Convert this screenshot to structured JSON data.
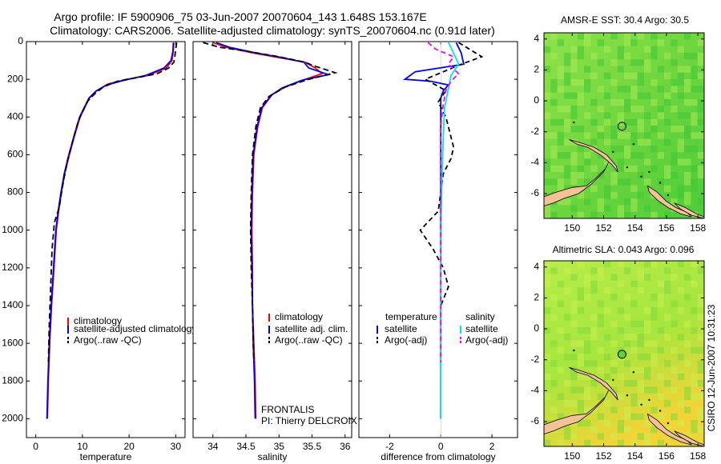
{
  "header": {
    "line1": "Argo profile: IF 5900906_75 03-Jun-2007 20070604_143 1.648S 153.167E",
    "line2": "Climatology: CARS2006. Satellite-adjusted climatology: synTS_20070604.nc (0.91d later)"
  },
  "side_stamp": "CSIRO 12-Jun-2007 10:31:23",
  "colors": {
    "climatology": "#ff0000",
    "satellite": "#0000ff",
    "argo": "#000000",
    "sal_satellite": "#00e5ee",
    "sal_argo": "#ff00ff",
    "land": "#f4c295",
    "map_green": "#5fd33a"
  },
  "chart_data": [
    {
      "type": "line",
      "xlabel": "temperature",
      "ylim": [
        0,
        2100
      ],
      "xlim": [
        -2,
        32
      ],
      "yticks": [
        0,
        200,
        400,
        600,
        800,
        1000,
        1200,
        1400,
        1600,
        1800,
        2000
      ],
      "xticks": [
        0,
        10,
        20,
        30
      ],
      "ytick_labels": [
        "0",
        "200",
        "400",
        "600",
        "800",
        "1000",
        "1200",
        "1400",
        "1600",
        "1800",
        "2000"
      ],
      "xtick_labels": [
        "0",
        "10",
        "20",
        "30"
      ],
      "legend": [
        "climatology",
        "satellite-adjusted climatology",
        "Argo(..raw -QC)"
      ],
      "series": [
        {
          "name": "climatology",
          "color": "#ff0000",
          "dash": "",
          "points": [
            [
              29.6,
              5
            ],
            [
              29.5,
              50
            ],
            [
              29.2,
              100
            ],
            [
              28.0,
              140
            ],
            [
              24.0,
              180
            ],
            [
              19.5,
              200
            ],
            [
              15.5,
              225
            ],
            [
              13.0,
              260
            ],
            [
              11.5,
              300
            ],
            [
              10.5,
              350
            ],
            [
              9.5,
              400
            ],
            [
              8.3,
              500
            ],
            [
              7.2,
              600
            ],
            [
              6.2,
              700
            ],
            [
              5.5,
              800
            ],
            [
              4.9,
              900
            ],
            [
              4.4,
              1000
            ],
            [
              3.9,
              1200
            ],
            [
              3.4,
              1400
            ],
            [
              3.0,
              1600
            ],
            [
              2.7,
              1800
            ],
            [
              2.5,
              2000
            ]
          ]
        },
        {
          "name": "satellite-adjusted climatology",
          "color": "#0000ff",
          "dash": "",
          "points": [
            [
              29.5,
              5
            ],
            [
              29.4,
              50
            ],
            [
              29.0,
              100
            ],
            [
              27.5,
              140
            ],
            [
              23.5,
              180
            ],
            [
              19.0,
              205
            ],
            [
              15.2,
              230
            ],
            [
              12.8,
              265
            ],
            [
              11.4,
              300
            ],
            [
              10.4,
              350
            ],
            [
              9.4,
              400
            ],
            [
              8.2,
              500
            ],
            [
              7.1,
              600
            ],
            [
              6.1,
              700
            ],
            [
              5.4,
              800
            ],
            [
              4.8,
              900
            ],
            [
              4.3,
              1000
            ],
            [
              3.8,
              1200
            ],
            [
              3.3,
              1400
            ],
            [
              2.9,
              1600
            ],
            [
              2.6,
              1800
            ],
            [
              2.4,
              2000
            ]
          ]
        },
        {
          "name": "Argo(..raw -QC)",
          "color": "#000000",
          "dash": "7,4",
          "points": [
            [
              30.2,
              5
            ],
            [
              30.0,
              40
            ],
            [
              29.8,
              80
            ],
            [
              29.6,
              110
            ],
            [
              28.5,
              140
            ],
            [
              26.0,
              170
            ],
            [
              22.0,
              190
            ],
            [
              17.5,
              210
            ],
            [
              14.5,
              240
            ],
            [
              12.5,
              280
            ],
            [
              11.0,
              320
            ],
            [
              10.0,
              370
            ],
            [
              9.0,
              430
            ],
            [
              8.0,
              520
            ],
            [
              6.8,
              630
            ],
            [
              5.8,
              760
            ],
            [
              5.0,
              880
            ],
            [
              4.0,
              960
            ],
            [
              3.5,
              1100
            ],
            [
              3.2,
              1300
            ],
            [
              2.9,
              1500
            ],
            [
              2.7,
              1700
            ]
          ]
        }
      ]
    },
    {
      "type": "line",
      "xlabel": "salinity",
      "ylim": [
        0,
        2100
      ],
      "xlim": [
        33.7,
        36.1
      ],
      "xticks": [
        34,
        34.5,
        35,
        35.5,
        36
      ],
      "xtick_labels": [
        "34",
        "34.5",
        "35",
        "35.5",
        "36"
      ],
      "legend": [
        "climatology",
        "satellite adj. clim.",
        "Argo(..raw -QC)"
      ],
      "annotation": [
        "FRONTALIS",
        "PI: Thierry DELCROIX"
      ],
      "series": [
        {
          "name": "climatology",
          "color": "#ff0000",
          "dash": "",
          "points": [
            [
              34.0,
              5
            ],
            [
              34.2,
              30
            ],
            [
              34.6,
              60
            ],
            [
              35.0,
              85
            ],
            [
              35.4,
              110
            ],
            [
              35.55,
              140
            ],
            [
              35.65,
              170
            ],
            [
              35.4,
              200
            ],
            [
              35.1,
              240
            ],
            [
              34.9,
              280
            ],
            [
              34.75,
              350
            ],
            [
              34.68,
              450
            ],
            [
              34.62,
              600
            ],
            [
              34.6,
              800
            ],
            [
              34.59,
              1000
            ],
            [
              34.6,
              1200
            ],
            [
              34.6,
              1400
            ],
            [
              34.62,
              1600
            ],
            [
              34.64,
              1800
            ],
            [
              34.65,
              2000
            ]
          ]
        },
        {
          "name": "satellite adj. clim.",
          "color": "#0000ff",
          "dash": "",
          "points": [
            [
              34.05,
              5
            ],
            [
              34.25,
              30
            ],
            [
              34.65,
              60
            ],
            [
              35.05,
              85
            ],
            [
              35.38,
              110
            ],
            [
              35.45,
              140
            ],
            [
              35.75,
              175
            ],
            [
              35.35,
              205
            ],
            [
              35.05,
              245
            ],
            [
              34.88,
              285
            ],
            [
              34.74,
              350
            ],
            [
              34.67,
              450
            ],
            [
              34.61,
              600
            ],
            [
              34.59,
              800
            ],
            [
              34.58,
              1000
            ],
            [
              34.59,
              1200
            ],
            [
              34.6,
              1400
            ],
            [
              34.61,
              1600
            ],
            [
              34.63,
              1800
            ],
            [
              34.64,
              2000
            ]
          ]
        },
        {
          "name": "Argo(..raw -QC)",
          "color": "#000000",
          "dash": "7,4",
          "points": [
            [
              33.85,
              5
            ],
            [
              34.1,
              30
            ],
            [
              34.5,
              50
            ],
            [
              35.0,
              80
            ],
            [
              35.4,
              110
            ],
            [
              35.5,
              125
            ],
            [
              35.85,
              165
            ],
            [
              35.45,
              200
            ],
            [
              35.1,
              240
            ],
            [
              34.85,
              290
            ],
            [
              34.72,
              350
            ],
            [
              34.65,
              450
            ],
            [
              34.6,
              600
            ],
            [
              34.58,
              800
            ],
            [
              34.57,
              1000
            ],
            [
              34.58,
              1200
            ],
            [
              34.6,
              1400
            ],
            [
              34.61,
              1600
            ],
            [
              34.62,
              1700
            ]
          ]
        }
      ]
    },
    {
      "type": "line",
      "xlabel": "difference from climatology",
      "ylim": [
        0,
        2100
      ],
      "xlim": [
        -3.2,
        3.0
      ],
      "xticks": [
        -2,
        0,
        2
      ],
      "xtick_labels": [
        "-2",
        "0",
        "2"
      ],
      "legend_temperature": {
        "title": "temperature",
        "items": [
          "satellite",
          "Argo(-adj)"
        ]
      },
      "legend_salinity": {
        "title": "salinity",
        "items": [
          "satellite",
          "Argo(-adj)"
        ]
      },
      "series": [
        {
          "name": "temperature satellite",
          "color": "#0000ff",
          "dash": "",
          "points": [
            [
              0.6,
              5
            ],
            [
              0.8,
              60
            ],
            [
              0.9,
              120
            ],
            [
              -1.0,
              160
            ],
            [
              -1.4,
              200
            ],
            [
              -0.4,
              210
            ],
            [
              0.3,
              230
            ],
            [
              0.1,
              260
            ],
            [
              0.0,
              300
            ],
            [
              0.0,
              400
            ],
            [
              0.0,
              600
            ],
            [
              0.0,
              800
            ],
            [
              0.0,
              1000
            ],
            [
              0.0,
              1200
            ],
            [
              0.0,
              1400
            ],
            [
              0.0,
              1600
            ],
            [
              0.0,
              1800
            ],
            [
              0.0,
              2000
            ]
          ]
        },
        {
          "name": "temperature Argo(-adj)",
          "color": "#000000",
          "dash": "6,4",
          "points": [
            [
              0.7,
              5
            ],
            [
              1.6,
              80
            ],
            [
              0.8,
              120
            ],
            [
              -0.6,
              200
            ],
            [
              0.2,
              260
            ],
            [
              -0.1,
              320
            ],
            [
              0.2,
              400
            ],
            [
              0.5,
              560
            ],
            [
              0.4,
              620
            ],
            [
              0.1,
              700
            ],
            [
              -0.1,
              900
            ],
            [
              -0.8,
              1000
            ],
            [
              -0.3,
              1100
            ],
            [
              0.1,
              1200
            ],
            [
              0.3,
              1300
            ],
            [
              0.0,
              1400
            ],
            [
              0.0,
              1500
            ]
          ]
        },
        {
          "name": "salinity satellite",
          "color": "#00e5ee",
          "dash": "",
          "points": [
            [
              0.3,
              5
            ],
            [
              0.5,
              60
            ],
            [
              0.7,
              120
            ],
            [
              0.4,
              180
            ],
            [
              0.3,
              250
            ],
            [
              0.15,
              350
            ],
            [
              0.1,
              500
            ],
            [
              0.05,
              700
            ],
            [
              0.02,
              900
            ],
            [
              0.0,
              1200
            ],
            [
              0.0,
              1500
            ],
            [
              0.0,
              1800
            ],
            [
              0.0,
              2000
            ]
          ]
        },
        {
          "name": "salinity Argo(-adj)",
          "color": "#ff00ff",
          "dash": "6,4",
          "points": [
            [
              -0.5,
              5
            ],
            [
              -0.2,
              40
            ],
            [
              0.5,
              80
            ],
            [
              0.3,
              120
            ],
            [
              0.7,
              170
            ],
            [
              0.4,
              210
            ],
            [
              0.2,
              260
            ],
            [
              0.1,
              330
            ],
            [
              0.0,
              450
            ],
            [
              0.0,
              600
            ],
            [
              0.0,
              800
            ],
            [
              0.0,
              1000
            ],
            [
              0.0,
              1300
            ],
            [
              0.0,
              1500
            ],
            [
              0.0,
              1700
            ]
          ]
        }
      ]
    },
    {
      "type": "heatmap",
      "title": "AMSR-E SST: 30.4 Argo: 30.5",
      "xlim": [
        148.2,
        158.4
      ],
      "ylim": [
        -7.6,
        4.4
      ],
      "xticks": [
        150,
        152,
        154,
        156,
        158
      ],
      "yticks": [
        4,
        2,
        0,
        -2,
        -4,
        -6
      ],
      "xtick_labels": [
        "150",
        "152",
        "154",
        "156",
        "158"
      ],
      "ytick_labels": [
        "4",
        "2",
        "0",
        "-2",
        "-4",
        "-6"
      ],
      "marker": [
        153.167,
        -1.648
      ]
    },
    {
      "type": "heatmap",
      "title": "Altimetric SLA: 0.043 Argo: 0.096",
      "xlim": [
        148.2,
        158.4
      ],
      "ylim": [
        -7.6,
        4.4
      ],
      "xticks": [
        150,
        152,
        154,
        156,
        158
      ],
      "yticks": [
        4,
        2,
        0,
        -2,
        -4,
        -6
      ],
      "xtick_labels": [
        "150",
        "152",
        "154",
        "156",
        "158"
      ],
      "ytick_labels": [
        "4",
        "2",
        "0",
        "-2",
        "-4",
        "-6"
      ],
      "marker": [
        153.167,
        -1.648
      ]
    }
  ]
}
